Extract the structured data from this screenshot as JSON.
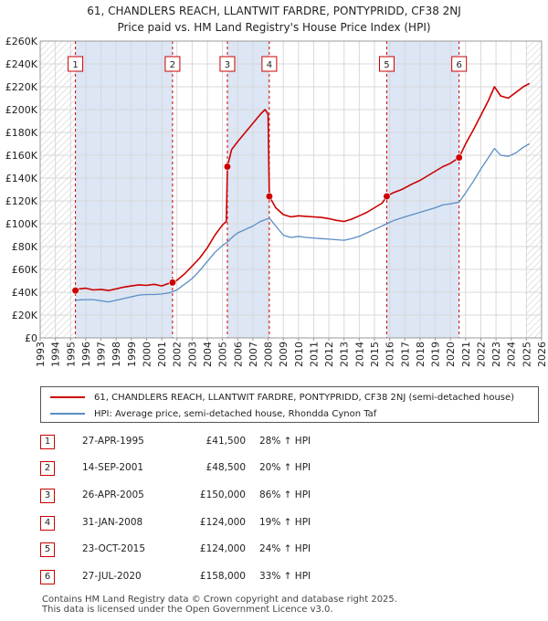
{
  "title_line1": "61, CHANDLERS REACH, LLANTWIT FARDRE, PONTYPRIDD, CF38 2NJ",
  "title_line2": "Price paid vs. HM Land Registry's House Price Index (HPI)",
  "chart_data": {
    "type": "line",
    "ylim": [
      0,
      260000
    ],
    "xlim": [
      1993,
      2026
    ],
    "y_ticks": [
      0,
      20000,
      40000,
      60000,
      80000,
      100000,
      120000,
      140000,
      160000,
      180000,
      200000,
      220000,
      240000,
      260000
    ],
    "y_tick_labels": [
      "£0",
      "£20K",
      "£40K",
      "£60K",
      "£80K",
      "£100K",
      "£120K",
      "£140K",
      "£160K",
      "£180K",
      "£200K",
      "£220K",
      "£240K",
      "£260K"
    ],
    "x_ticks": [
      "1993",
      "1994",
      "1995",
      "1996",
      "1997",
      "1998",
      "1999",
      "2000",
      "2001",
      "2002",
      "2003",
      "2004",
      "2005",
      "2006",
      "2007",
      "2008",
      "2009",
      "2010",
      "2011",
      "2012",
      "2013",
      "2014",
      "2015",
      "2016",
      "2017",
      "2018",
      "2019",
      "2020",
      "2021",
      "2022",
      "2023",
      "2024",
      "2025",
      "2026"
    ],
    "hatched_regions": [
      [
        1993,
        1995.32
      ],
      [
        2025.0,
        2026
      ]
    ],
    "shaded_regions": [
      [
        1995.32,
        2001.71
      ],
      [
        2005.32,
        2008.08
      ],
      [
        2015.81,
        2020.57
      ]
    ],
    "series": [
      {
        "name": "61, CHANDLERS REACH, LLANTWIT FARDRE, PONTYPRIDD, CF38 2NJ (semi-detached house)",
        "color": "#cc0000",
        "points": [
          [
            1995.32,
            41500
          ],
          [
            1995.6,
            43000
          ],
          [
            1996,
            43500
          ],
          [
            1996.5,
            42000
          ],
          [
            1997,
            42500
          ],
          [
            1997.5,
            41500
          ],
          [
            1998,
            43000
          ],
          [
            1998.5,
            44500
          ],
          [
            1999,
            45500
          ],
          [
            1999.5,
            46500
          ],
          [
            2000,
            46000
          ],
          [
            2000.5,
            47000
          ],
          [
            2001,
            45500
          ],
          [
            2001.4,
            47500
          ],
          [
            2001.71,
            48500
          ],
          [
            2002,
            50500
          ],
          [
            2002.5,
            56000
          ],
          [
            2003,
            63000
          ],
          [
            2003.5,
            70000
          ],
          [
            2004,
            79000
          ],
          [
            2004.5,
            90000
          ],
          [
            2005,
            99000
          ],
          [
            2005.25,
            102000
          ],
          [
            2005.32,
            150000
          ],
          [
            2005.6,
            165000
          ],
          [
            2006,
            172000
          ],
          [
            2006.5,
            180000
          ],
          [
            2007,
            188000
          ],
          [
            2007.5,
            196000
          ],
          [
            2007.8,
            200000
          ],
          [
            2008.0,
            196000
          ],
          [
            2008.08,
            124000
          ],
          [
            2008.5,
            114000
          ],
          [
            2009,
            108000
          ],
          [
            2009.5,
            106000
          ],
          [
            2010,
            107000
          ],
          [
            2010.5,
            106500
          ],
          [
            2011,
            106000
          ],
          [
            2011.5,
            105500
          ],
          [
            2012,
            104500
          ],
          [
            2012.5,
            103000
          ],
          [
            2013,
            102000
          ],
          [
            2013.5,
            104000
          ],
          [
            2014,
            107000
          ],
          [
            2014.5,
            110000
          ],
          [
            2015,
            114000
          ],
          [
            2015.5,
            118000
          ],
          [
            2015.81,
            124000
          ],
          [
            2016.2,
            127000
          ],
          [
            2016.8,
            130000
          ],
          [
            2017.5,
            135000
          ],
          [
            2018,
            138000
          ],
          [
            2018.5,
            142000
          ],
          [
            2019,
            146000
          ],
          [
            2019.5,
            150000
          ],
          [
            2020,
            153000
          ],
          [
            2020.57,
            158000
          ],
          [
            2021,
            170000
          ],
          [
            2021.5,
            182000
          ],
          [
            2022,
            195000
          ],
          [
            2022.5,
            208000
          ],
          [
            2022.9,
            220000
          ],
          [
            2023.3,
            212000
          ],
          [
            2023.8,
            210000
          ],
          [
            2024.3,
            215000
          ],
          [
            2024.8,
            220000
          ],
          [
            2025.2,
            223000
          ]
        ]
      },
      {
        "name": "HPI: Average price, semi-detached house, Rhondda Cynon Taf",
        "color": "#5b8ec4",
        "points": [
          [
            1995.32,
            33000
          ],
          [
            1995.8,
            33500
          ],
          [
            1996.5,
            33500
          ],
          [
            1997,
            32500
          ],
          [
            1997.5,
            31500
          ],
          [
            1998,
            33000
          ],
          [
            1998.5,
            34500
          ],
          [
            1999,
            36000
          ],
          [
            1999.5,
            37500
          ],
          [
            2000,
            38000
          ],
          [
            2000.5,
            38000
          ],
          [
            2001,
            38500
          ],
          [
            2001.5,
            39500
          ],
          [
            2001.71,
            40500
          ],
          [
            2002,
            42000
          ],
          [
            2002.5,
            47000
          ],
          [
            2003,
            52000
          ],
          [
            2003.5,
            59000
          ],
          [
            2004,
            67000
          ],
          [
            2004.5,
            75000
          ],
          [
            2005,
            81000
          ],
          [
            2005.32,
            84000
          ],
          [
            2005.7,
            89000
          ],
          [
            2006,
            92000
          ],
          [
            2006.5,
            95000
          ],
          [
            2007,
            98000
          ],
          [
            2007.5,
            102000
          ],
          [
            2008.08,
            105000
          ],
          [
            2008.5,
            98000
          ],
          [
            2009,
            90000
          ],
          [
            2009.5,
            88000
          ],
          [
            2010,
            89000
          ],
          [
            2010.5,
            88000
          ],
          [
            2011,
            87500
          ],
          [
            2011.5,
            87000
          ],
          [
            2012,
            86500
          ],
          [
            2012.5,
            86000
          ],
          [
            2013,
            85500
          ],
          [
            2013.5,
            87000
          ],
          [
            2014,
            89000
          ],
          [
            2014.5,
            92000
          ],
          [
            2015,
            95000
          ],
          [
            2015.5,
            98000
          ],
          [
            2015.81,
            100000
          ],
          [
            2016.3,
            103000
          ],
          [
            2017,
            106000
          ],
          [
            2017.5,
            108000
          ],
          [
            2018,
            110000
          ],
          [
            2018.5,
            112000
          ],
          [
            2019,
            114000
          ],
          [
            2019.5,
            116500
          ],
          [
            2020,
            117500
          ],
          [
            2020.57,
            119000
          ],
          [
            2021,
            127000
          ],
          [
            2021.5,
            137000
          ],
          [
            2022,
            148000
          ],
          [
            2022.5,
            158000
          ],
          [
            2022.9,
            166000
          ],
          [
            2023.3,
            160000
          ],
          [
            2023.8,
            159000
          ],
          [
            2024.3,
            162000
          ],
          [
            2024.8,
            167000
          ],
          [
            2025.2,
            170000
          ]
        ]
      }
    ],
    "sales": [
      {
        "id": "1",
        "x": 1995.32,
        "value": 41500
      },
      {
        "id": "2",
        "x": 2001.71,
        "value": 48500
      },
      {
        "id": "3",
        "x": 2005.32,
        "value": 150000
      },
      {
        "id": "4",
        "x": 2008.08,
        "value": 124000
      },
      {
        "id": "5",
        "x": 2015.81,
        "value": 124000
      },
      {
        "id": "6",
        "x": 2020.57,
        "value": 158000
      }
    ]
  },
  "legend": {
    "property_label": "61, CHANDLERS REACH, LLANTWIT FARDRE, PONTYPRIDD, CF38 2NJ (semi-detached house)",
    "hpi_label": "HPI: Average price, semi-detached house, Rhondda Cynon Taf",
    "property_color": "#cc0000",
    "hpi_color": "#5b8ec4"
  },
  "sales_table": [
    {
      "num": "1",
      "date": "27-APR-1995",
      "price": "£41,500",
      "hpi": "28% ↑ HPI"
    },
    {
      "num": "2",
      "date": "14-SEP-2001",
      "price": "£48,500",
      "hpi": "20% ↑ HPI"
    },
    {
      "num": "3",
      "date": "26-APR-2005",
      "price": "£150,000",
      "hpi": "86% ↑ HPI"
    },
    {
      "num": "4",
      "date": "31-JAN-2008",
      "price": "£124,000",
      "hpi": "19% ↑ HPI"
    },
    {
      "num": "5",
      "date": "23-OCT-2015",
      "price": "£124,000",
      "hpi": "24% ↑ HPI"
    },
    {
      "num": "6",
      "date": "27-JUL-2020",
      "price": "£158,000",
      "hpi": "33% ↑ HPI"
    }
  ],
  "footer_line1": "Contains HM Land Registry data © Crown copyright and database right 2025.",
  "footer_line2": "This data is licensed under the Open Government Licence v3.0."
}
